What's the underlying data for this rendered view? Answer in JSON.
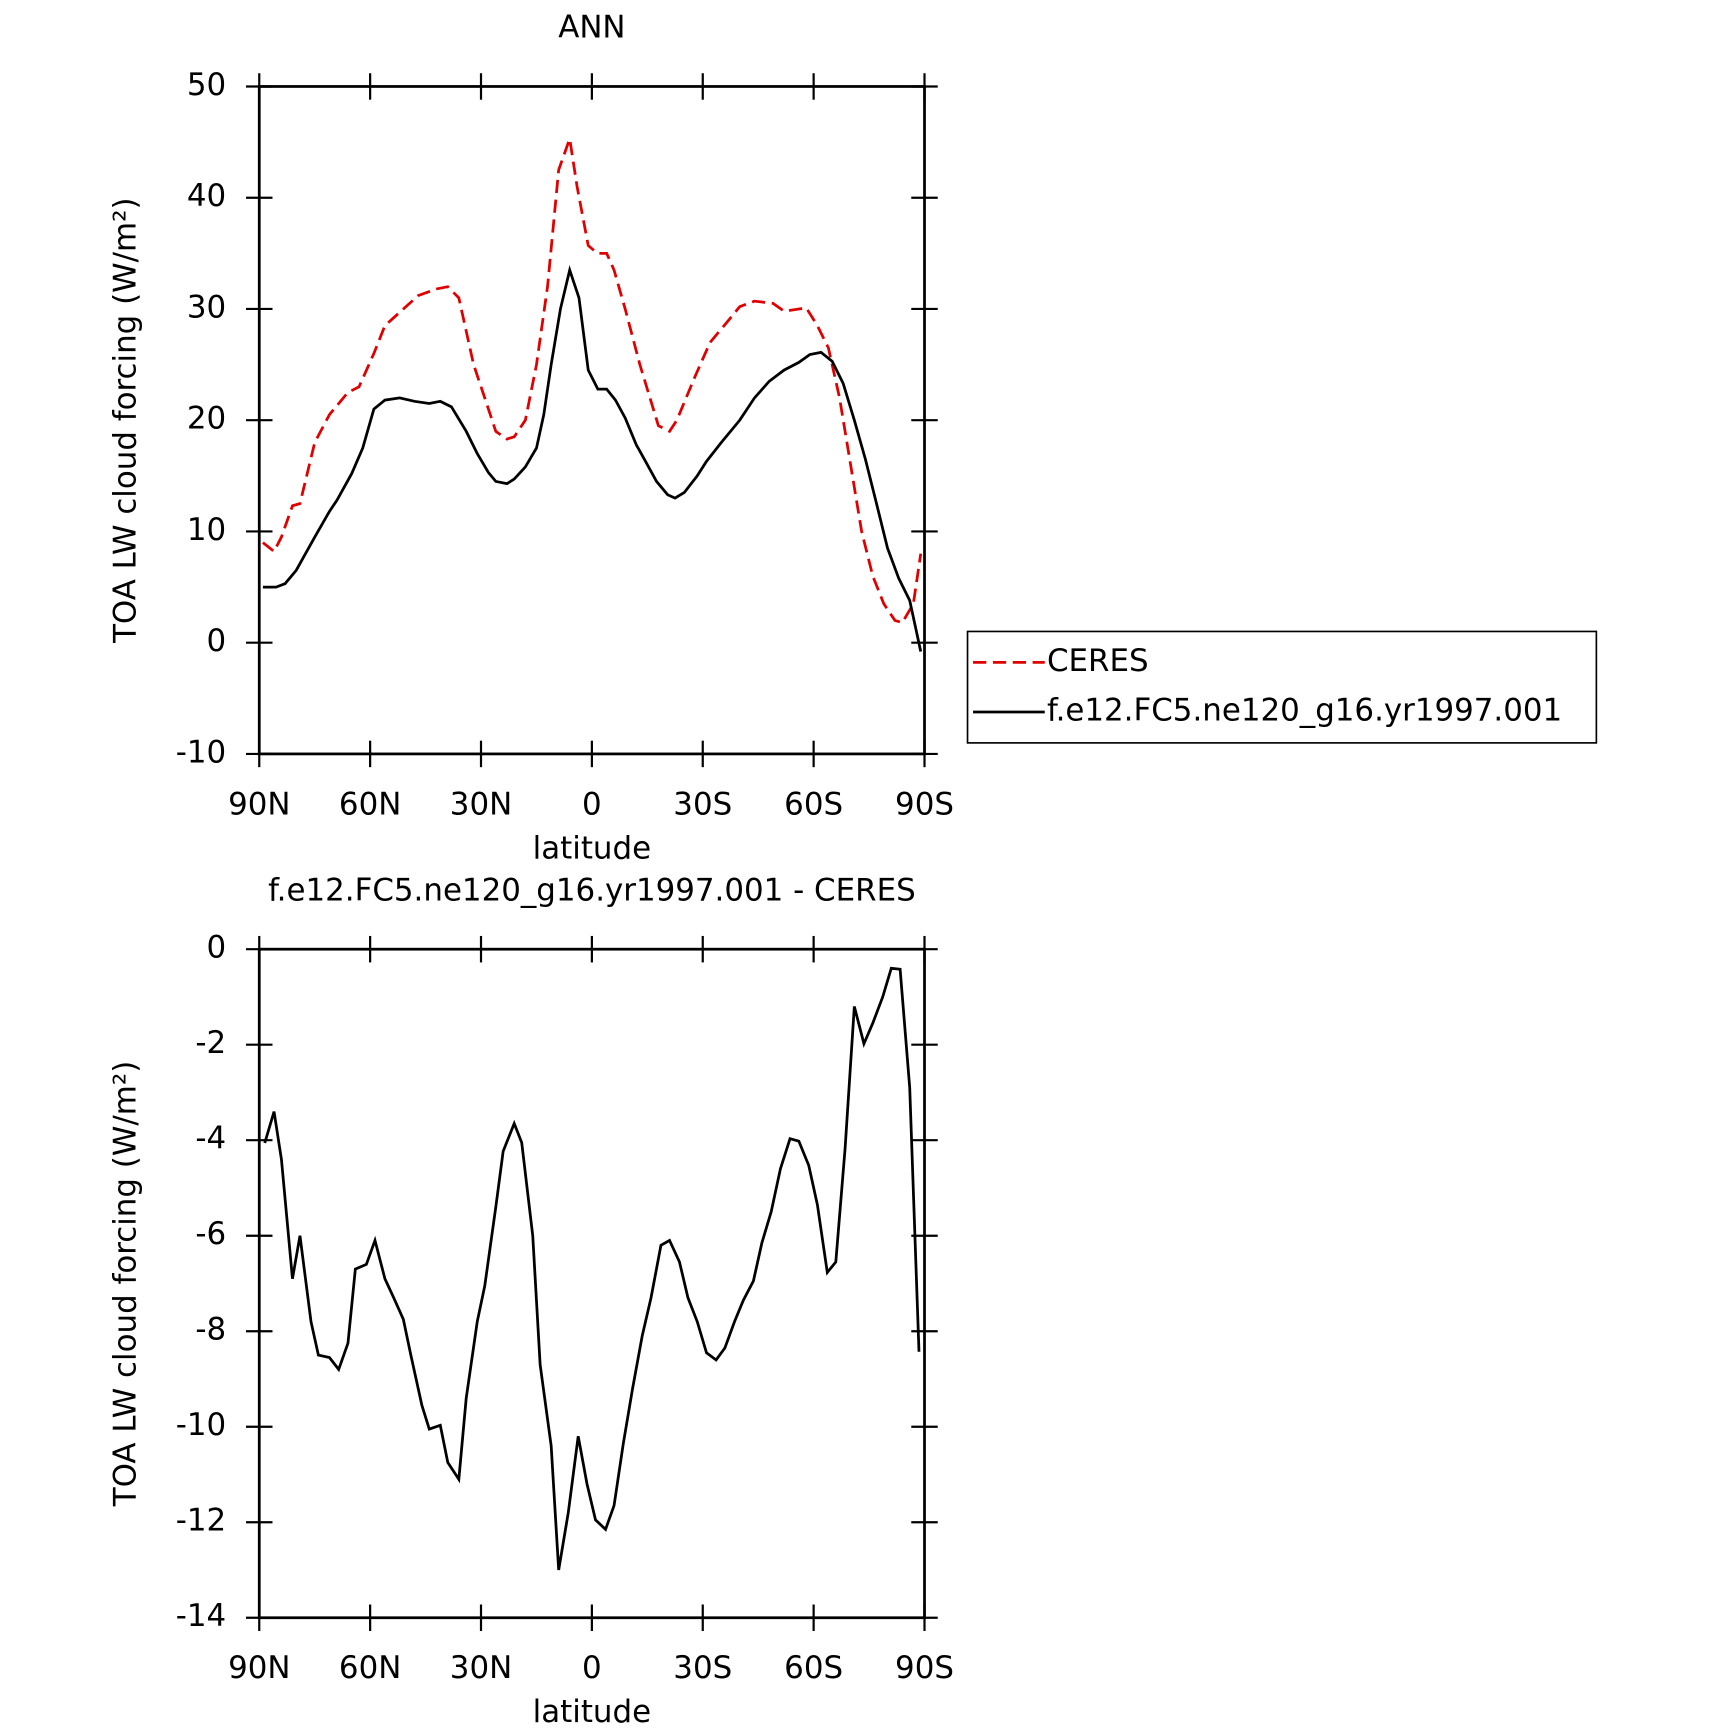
{
  "chart_data": [
    {
      "type": "line",
      "title": "ANN",
      "xlabel": "latitude",
      "ylabel": "TOA LW cloud forcing (W/m²)",
      "xlim": [
        90,
        -90
      ],
      "ylim": [
        -10,
        50
      ],
      "xticks": [
        {
          "value": 90,
          "label": "90N"
        },
        {
          "value": 60,
          "label": "60N"
        },
        {
          "value": 30,
          "label": "30N"
        },
        0,
        {
          "value": -30,
          "label": "30S"
        },
        {
          "value": -60,
          "label": "60S"
        },
        {
          "value": -90,
          "label": "90S"
        }
      ],
      "yticks": [
        -10,
        0,
        10,
        20,
        30,
        40,
        50
      ],
      "legend": "right",
      "series": [
        {
          "name": "CERES",
          "color": "#e00000",
          "dash": true,
          "x": [
            89,
            86,
            84,
            81,
            79,
            75,
            71,
            66,
            63,
            59,
            56,
            51,
            47,
            42,
            39,
            36,
            32,
            29,
            26,
            23,
            21,
            18,
            15,
            12,
            9,
            6,
            4,
            1,
            -1.5,
            -4,
            -6,
            -9,
            -13,
            -18,
            -21,
            -23,
            -28,
            -32,
            -37,
            -40,
            -44,
            -49,
            -52,
            -58,
            -61,
            -64,
            -67,
            -70,
            -73,
            -76,
            -79,
            -82,
            -84,
            -87,
            -89
          ],
          "values": [
            9,
            8.2,
            9.5,
            12.3,
            12.5,
            18,
            20.5,
            22.5,
            23,
            26,
            28.5,
            30,
            31.2,
            31.8,
            32,
            31,
            25,
            22,
            19,
            18.3,
            18.5,
            20,
            25,
            32,
            42.5,
            45.3,
            41,
            35.7,
            35,
            35,
            33.5,
            30,
            25,
            19.5,
            19,
            20,
            24,
            27,
            29,
            30.2,
            30.7,
            30.5,
            29.8,
            30.1,
            28.5,
            26.5,
            22,
            16,
            10,
            6,
            3.5,
            2,
            1.8,
            3.5,
            8
          ]
        },
        {
          "name": "f.e12.FC5.ne120_g16.yr1997.001",
          "color": "#000000",
          "dash": false,
          "x": [
            89,
            85.5,
            83,
            80,
            75,
            71,
            69,
            65,
            62,
            59,
            56,
            52,
            48,
            44,
            41,
            38,
            34,
            31,
            28,
            26,
            23,
            21,
            18,
            15,
            13,
            11,
            8.5,
            6,
            3.5,
            1,
            -1.6,
            -4,
            -6.4,
            -9,
            -12,
            -14.5,
            -17.5,
            -20.5,
            -22.5,
            -25,
            -28.5,
            -31,
            -35,
            -40,
            -44,
            -48,
            -52,
            -56,
            -59,
            -62,
            -65,
            -68,
            -71,
            -74,
            -77,
            -80,
            -83,
            -86,
            -89
          ],
          "values": [
            5,
            5,
            5.3,
            6.5,
            9.5,
            11.8,
            12.8,
            15.2,
            17.5,
            21,
            21.8,
            22,
            21.7,
            21.5,
            21.7,
            21.2,
            19,
            17,
            15.3,
            14.5,
            14.3,
            14.7,
            15.8,
            17.5,
            20.5,
            25,
            30,
            33.5,
            31,
            24.5,
            22.8,
            22.8,
            21.8,
            20.2,
            17.8,
            16.3,
            14.5,
            13.3,
            13,
            13.5,
            15,
            16.3,
            18,
            20,
            22,
            23.5,
            24.5,
            25.2,
            25.9,
            26.1,
            25.3,
            23.3,
            20,
            16.5,
            12.5,
            8.5,
            5.8,
            3.8,
            -0.8
          ]
        }
      ]
    },
    {
      "type": "line",
      "title": "f.e12.FC5.ne120_g16.yr1997.001 - CERES",
      "xlabel": "latitude",
      "ylabel": "TOA LW cloud forcing (W/m²)",
      "xlim": [
        90,
        -90
      ],
      "ylim": [
        -14,
        0
      ],
      "xticks": [
        {
          "value": 90,
          "label": "90N"
        },
        {
          "value": 60,
          "label": "60N"
        },
        {
          "value": 30,
          "label": "30N"
        },
        0,
        {
          "value": -30,
          "label": "30S"
        },
        {
          "value": -60,
          "label": "60S"
        },
        {
          "value": -90,
          "label": "90S"
        }
      ],
      "yticks": [
        -14,
        -12,
        -10,
        -8,
        -6,
        -4,
        -2,
        0
      ],
      "series": [
        {
          "color": "#000000",
          "dash": false,
          "x": [
            88.5,
            86,
            84,
            81,
            79,
            76,
            74,
            71,
            68.5,
            66,
            64,
            61,
            58.7,
            56,
            53.6,
            51,
            49,
            46,
            44,
            41,
            39,
            36,
            34,
            31,
            29,
            26,
            24,
            21,
            19,
            16,
            14,
            11,
            9,
            6.4,
            3.7,
            1.3,
            -1,
            -3.7,
            -6,
            -8.5,
            -11,
            -13.6,
            -16,
            -18.7,
            -21,
            -23.7,
            -26,
            -28.5,
            -31,
            -33.6,
            -36,
            -38.6,
            -41,
            -43.7,
            -46,
            -48.5,
            -51,
            -53.6,
            -56,
            -58.7,
            -61,
            -63.7,
            -66,
            -68.5,
            -71,
            -73.6,
            -76,
            -78.7,
            -81,
            -83.4,
            -86,
            -88.5
          ],
          "values": [
            -4.06,
            -3.4,
            -4.4,
            -6.9,
            -6,
            -7.8,
            -8.5,
            -8.55,
            -8.8,
            -8.25,
            -6.7,
            -6.6,
            -6.1,
            -6.9,
            -7.3,
            -7.75,
            -8.5,
            -9.55,
            -10.05,
            -9.97,
            -10.75,
            -11.1,
            -9.4,
            -7.8,
            -7.05,
            -5.4,
            -4.23,
            -3.65,
            -4.05,
            -6,
            -8.7,
            -10.4,
            -13,
            -11.8,
            -10.2,
            -11.2,
            -11.95,
            -12.15,
            -11.65,
            -10.35,
            -9.2,
            -8.1,
            -7.3,
            -6.2,
            -6.1,
            -6.55,
            -7.3,
            -7.8,
            -8.45,
            -8.6,
            -8.35,
            -7.8,
            -7.35,
            -6.95,
            -6.15,
            -5.5,
            -4.6,
            -3.97,
            -4.02,
            -4.53,
            -5.35,
            -6.77,
            -6.55,
            -4.18,
            -1.2,
            -1.98,
            -1.55,
            -1,
            -0.4,
            -0.42,
            -2.9,
            -8.43
          ]
        }
      ]
    }
  ]
}
